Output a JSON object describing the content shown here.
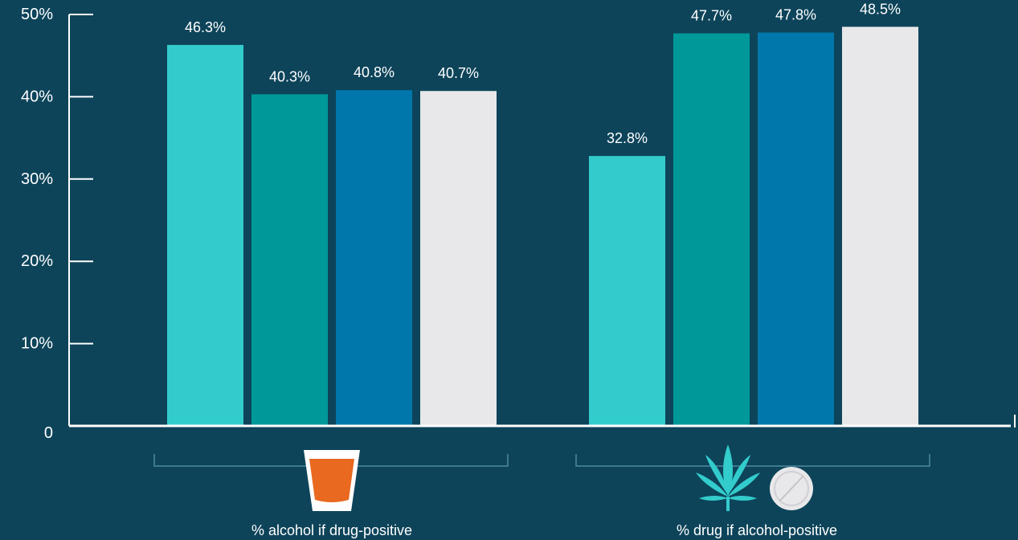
{
  "chart_data": {
    "type": "bar",
    "categories": [
      "% alcohol if drug-positive",
      "% drug if alcohol-positive"
    ],
    "series": [
      {
        "values": [
          46.3,
          32.8
        ],
        "color": "#33cccc"
      },
      {
        "values": [
          40.3,
          47.7
        ],
        "color": "#009999"
      },
      {
        "values": [
          40.8,
          47.8
        ],
        "color": "#0077aa"
      },
      {
        "values": [
          40.7,
          48.5
        ],
        "color": "#e8e8ea"
      }
    ],
    "data_labels": [
      [
        "46.3%",
        "40.3%",
        "40.8%",
        "40.7%"
      ],
      [
        "32.8%",
        "47.7%",
        "47.8%",
        "48.5%"
      ]
    ],
    "ytick_labels": [
      "0",
      "10%",
      "20%",
      "30%",
      "40%",
      "50%"
    ],
    "ylim": [
      0,
      50
    ],
    "grid": false,
    "legend": "none",
    "colors": {
      "background": "#0d445a",
      "axis": "#ffffff",
      "bracket": "#4d8a9f",
      "glass_fill": "#e8691f",
      "leaf": "#33cccc",
      "pill": "#e8e8ea"
    },
    "category_icons": [
      [
        "shot-glass-icon"
      ],
      [
        "cannabis-leaf-icon",
        "pill-icon"
      ]
    ]
  }
}
